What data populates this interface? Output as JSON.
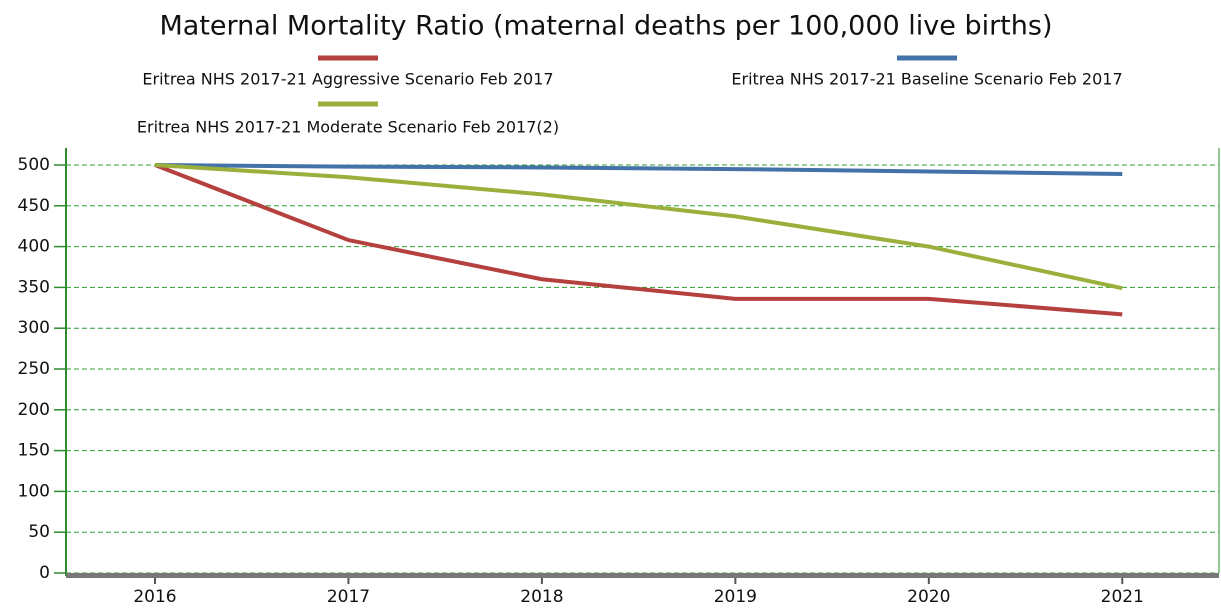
{
  "chart_data": {
    "type": "line",
    "title": "Maternal Mortality Ratio (maternal deaths per 100,000 live births)",
    "x": [
      2016,
      2017,
      2018,
      2019,
      2020,
      2021
    ],
    "series": [
      {
        "name": "Eritrea NHS 2017-21 Aggressive Scenario Feb 2017",
        "color": "#b5413f",
        "values": [
          500,
          408,
          360,
          336,
          336,
          317
        ]
      },
      {
        "name": "Eritrea NHS 2017-21 Baseline Scenario Feb 2017",
        "color": "#4472a8",
        "values": [
          500,
          498,
          497,
          495,
          492,
          489
        ]
      },
      {
        "name": "Eritrea NHS 2017-21 Moderate Scenario Feb 2017(2)",
        "color": "#9ab03c",
        "values": [
          500,
          485,
          464,
          437,
          400,
          349
        ]
      }
    ],
    "xlim": [
      2015.54,
      2021.5
    ],
    "xticks": [
      2016,
      2017,
      2018,
      2019,
      2020,
      2021
    ],
    "ylim": [
      0,
      500
    ],
    "yticks": [
      0,
      50,
      100,
      150,
      200,
      250,
      300,
      350,
      400,
      450,
      500
    ],
    "grid": true
  }
}
